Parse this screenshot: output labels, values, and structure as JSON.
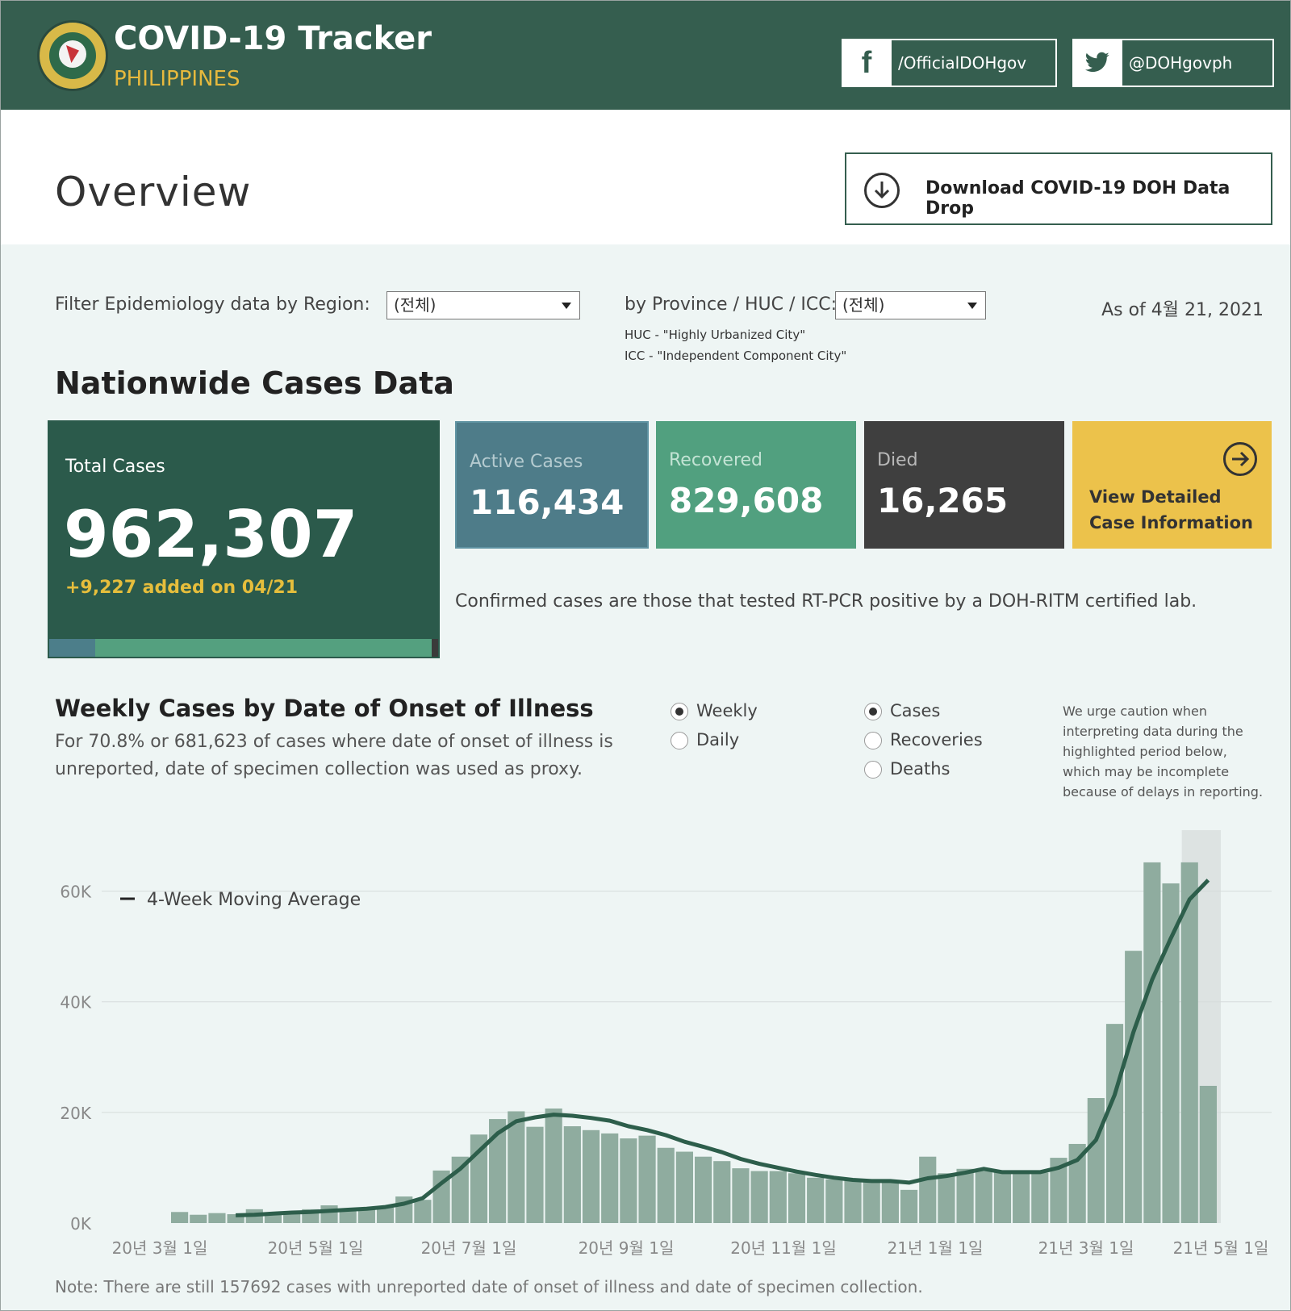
{
  "header": {
    "title": "COVID-19 Tracker",
    "subtitle": "PHILIPPINES",
    "facebook": "/OfficialDOHgov",
    "twitter": "@DOHgovph"
  },
  "overview": {
    "title": "Overview",
    "download_label": "Download COVID-19 DOH Data Drop"
  },
  "filters": {
    "region_label": "Filter Epidemiology data by Region:",
    "region_value": "(전체)",
    "province_label": "by Province / HUC / ICC:",
    "province_value": "(전체)",
    "huc_note": "HUC - \"Highly Urbanized City\"",
    "icc_note": "ICC - \"Independent Component City\"",
    "as_of": "As of 4월 21, 2021"
  },
  "nationwide": {
    "title": "Nationwide Cases Data",
    "total_label": "Total Cases",
    "total_value": "962,307",
    "added": "+9,227 added on 04/21",
    "active_label": "Active Cases",
    "active_value": "116,434",
    "recovered_label": "Recovered",
    "recovered_value": "829,608",
    "died_label": "Died",
    "died_value": "16,265",
    "view_line1": "View Detailed",
    "view_line2": "Case Information",
    "confirmed_note": "Confirmed cases are those that tested RT-PCR positive by a DOH-RITM certified lab.",
    "share_active": 0.121,
    "share_recovered": 0.862,
    "share_died": 0.017
  },
  "weekly": {
    "title": "Weekly Cases by Date of Onset of Illness",
    "note": "For 70.8% or 681,623 of cases where date of onset of illness is unreported, date of specimen collection was used as proxy.",
    "period_options": [
      "Weekly",
      "Daily"
    ],
    "period_selected": "Weekly",
    "measure_options": [
      "Cases",
      "Recoveries",
      "Deaths"
    ],
    "measure_selected": "Cases",
    "caution": "We urge caution when interpreting data during the highlighted period below, which may be incomplete because of delays in reporting."
  },
  "footer_note": "Note: There are still 157692 cases with unreported date of onset of illness and date of specimen collection.",
  "colors": {
    "header_bg": "#355e4f",
    "accent_yellow": "#e6be3c",
    "bar": "#8fac9f",
    "line": "#2d5e4b"
  },
  "chart_data": {
    "type": "bar",
    "legend": "4-Week Moving Average",
    "y_ticks": [
      "0K",
      "20K",
      "40K",
      "60K"
    ],
    "x_ticks": [
      "20년 3월 1일",
      "20년 5월 1일",
      "20년 7월 1일",
      "20년 9월 1일",
      "20년 11월 1일",
      "21년 1월 1일",
      "21년 3월 1일",
      "21년 5월 1일"
    ],
    "ylim": [
      0,
      70000
    ],
    "highlighted_period": "last two weeks",
    "values": [
      2000,
      1500,
      1800,
      1600,
      2500,
      1800,
      2000,
      2500,
      3200,
      2200,
      2800,
      2800,
      4800,
      4200,
      9500,
      12000,
      16000,
      18800,
      20200,
      17400,
      20700,
      17500,
      16800,
      16200,
      15300,
      15800,
      13600,
      12900,
      12000,
      11200,
      9900,
      9400,
      9400,
      9000,
      8200,
      7900,
      7800,
      7700,
      7600,
      6000,
      12000,
      9000,
      9800,
      9400,
      9200,
      9300,
      9100,
      11800,
      14300,
      22600,
      36000,
      49200,
      65200,
      61400,
      65200,
      24800
    ],
    "moving_average": [
      null,
      null,
      null,
      1400,
      1500,
      1700,
      1900,
      2000,
      2200,
      2400,
      2600,
      2900,
      3500,
      4500,
      7200,
      9800,
      13000,
      16200,
      18400,
      19100,
      19600,
      19400,
      19000,
      18500,
      17500,
      16800,
      15900,
      14700,
      13800,
      12800,
      11600,
      10700,
      10000,
      9300,
      8700,
      8200,
      7800,
      7600,
      7600,
      7300,
      8100,
      8500,
      9100,
      9800,
      9200,
      9200,
      9200,
      10000,
      11400,
      15000,
      23200,
      34500,
      44000,
      51500,
      58500,
      62000
    ]
  }
}
